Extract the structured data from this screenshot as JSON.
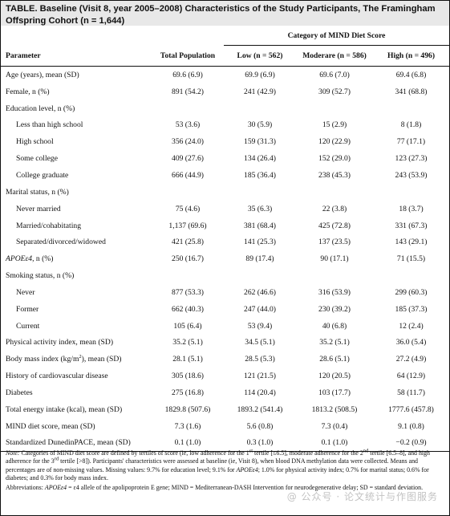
{
  "title": "TABLE. Baseline (Visit 8, year 2005–2008) Characteristics of the Study Participants, The Framingham Offspring Cohort (n = 1,644)",
  "header": {
    "category_label": "Category of MIND Diet Score",
    "parameter": "Parameter",
    "total": "Total Population",
    "low": "Low (n = 562)",
    "moderate": "Moderare (n = 586)",
    "high": "High (n = 496)"
  },
  "rows": [
    {
      "label": "Age (years), mean (SD)",
      "total": "69.6 (6.9)",
      "low": "69.9 (6.9)",
      "moderate": "69.6 (7.0)",
      "high": "69.4 (6.8)"
    },
    {
      "label": "Female, n (%)",
      "total": "891 (54.2)",
      "low": "241 (42.9)",
      "moderate": "309 (52.7)",
      "high": "341 (68.8)"
    },
    {
      "label": "Education level, n (%)",
      "total": "",
      "low": "",
      "moderate": "",
      "high": ""
    },
    {
      "label": "Less than high school",
      "total": "53 (3.6)",
      "low": "30 (5.9)",
      "moderate": "15 (2.9)",
      "high": "8 (1.8)"
    },
    {
      "label": "High school",
      "total": "356 (24.0)",
      "low": "159 (31.3)",
      "moderate": "120 (22.9)",
      "high": "77 (17.1)"
    },
    {
      "label": "Some college",
      "total": "409 (27.6)",
      "low": "134 (26.4)",
      "moderate": "152 (29.0)",
      "high": "123 (27.3)"
    },
    {
      "label": "College graduate",
      "total": "666 (44.9)",
      "low": "185 (36.4)",
      "moderate": "238 (45.3)",
      "high": "243 (53.9)"
    },
    {
      "label": "Marital status, n (%)",
      "total": "",
      "low": "",
      "moderate": "",
      "high": ""
    },
    {
      "label": "Never married",
      "total": "75 (4.6)",
      "low": "35 (6.3)",
      "moderate": "22 (3.8)",
      "high": "18 (3.7)"
    },
    {
      "label": "Married/cohabitating",
      "total": "1,137 (69.6)",
      "low": "381 (68.4)",
      "moderate": "425 (72.8)",
      "high": "331 (67.3)"
    },
    {
      "label": "Separated/divorced/widowed",
      "total": "421 (25.8)",
      "low": "141 (25.3)",
      "moderate": "137 (23.5)",
      "high": "143 (29.1)"
    },
    {
      "label_italic": "APOEε4",
      "label_rest": ", n (%)",
      "total": "250 (16.7)",
      "low": "89 (17.4)",
      "moderate": "90 (17.1)",
      "high": "71 (15.5)"
    },
    {
      "label": "Smoking status, n (%)",
      "total": "",
      "low": "",
      "moderate": "",
      "high": ""
    },
    {
      "label": "Never",
      "total": "877 (53.3)",
      "low": "262 (46.6)",
      "moderate": "316 (53.9)",
      "high": "299 (60.3)"
    },
    {
      "label": "Former",
      "total": "662 (40.3)",
      "low": "247 (44.0)",
      "moderate": "230 (39.2)",
      "high": "185 (37.3)"
    },
    {
      "label": "Current",
      "total": "105 (6.4)",
      "low": "53 (9.4)",
      "moderate": "40 (6.8)",
      "high": "12 (2.4)"
    },
    {
      "label": "Physical activity index, mean (SD)",
      "total": "35.2 (5.1)",
      "low": "34.5 (5.1)",
      "moderate": "35.2 (5.1)",
      "high": "36.0 (5.4)"
    },
    {
      "label_pre": "Body mass index (kg/m",
      "label_sup": "2",
      "label_post": "), mean (SD)",
      "total": "28.1 (5.1)",
      "low": "28.5 (5.3)",
      "moderate": "28.6 (5.1)",
      "high": "27.2 (4.9)"
    },
    {
      "label": "History of cardiovascular disease",
      "total": "305 (18.6)",
      "low": "121 (21.5)",
      "moderate": "120 (20.5)",
      "high": "64 (12.9)"
    },
    {
      "label": "Diabetes",
      "total": "275 (16.8)",
      "low": "114 (20.4)",
      "moderate": "103 (17.7)",
      "high": "58 (11.7)"
    },
    {
      "label": "Total energy intake (kcal), mean (SD)",
      "total": "1829.8 (507.6)",
      "low": "1893.2 (541.4)",
      "moderate": "1813.2 (508.5)",
      "high": "1777.6 (457.8)"
    },
    {
      "label": "MIND diet score, mean (SD)",
      "total": "7.3 (1.6)",
      "low": "5.6 (0.8)",
      "moderate": "7.3 (0.4)",
      "high": "9.1 (0.8)"
    },
    {
      "label": "Standardized DunedinPACE, mean (SD)",
      "total": "0.1 (1.0)",
      "low": "0.3 (1.0)",
      "moderate": "0.1 (1.0)",
      "high": "−0.2 (0.9)"
    }
  ],
  "note": {
    "label": "Note:",
    "p1": "Categories of MIND diet score are defined by tertiles of score (ie, low adherence for the 1",
    "sup1": "st",
    "p2": " tertile [≤6.5], moderate adherence for the 2",
    "sup2": "nd",
    "p3": " tertile [6.5–8], and high adherence for the 3",
    "sup3": "rd",
    "p4": " tertile [>8]). Participants' characteristics were assessed at baseline (ie, Visit 8), when blood DNA methylation data were collected. Means and percentages are of non-missing values. Missing values: 9.7% for education level; 9.1% for ",
    "i1": "APOEε4",
    "p5": "; 1.0% for physical activity index; 0.7% for marital status; 0.6% for diabetes; and 0.3% for body mass index."
  },
  "abbrev": {
    "label": "Abbreviations:",
    "i1": "APOEε4",
    "text": " = ε4 allele of the apolipoprotein E gene; MIND = Mediterranean-DASH Intervention for neurodegenerative delay; SD = standard deviation."
  },
  "watermark": "@ 公众号 · 论文统计与作图服务"
}
